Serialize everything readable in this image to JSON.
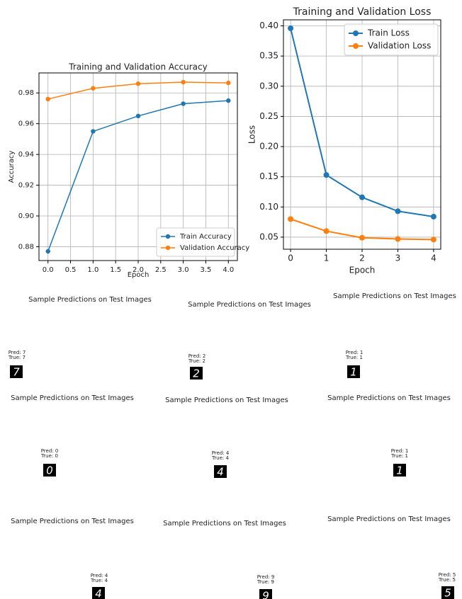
{
  "chart_data": [
    {
      "type": "line",
      "title": "Training and Validation Accuracy",
      "x_label": "Epoch",
      "y_label": "Accuracy",
      "x": [
        0,
        1,
        2,
        3,
        4
      ],
      "series": [
        {
          "name": "Train Accuracy",
          "color": "#1f77b4",
          "values": [
            0.877,
            0.955,
            0.965,
            0.973,
            0.975
          ]
        },
        {
          "name": "Validation Accuracy",
          "color": "#ff7f0e",
          "values": [
            0.976,
            0.983,
            0.986,
            0.987,
            0.9865
          ]
        }
      ],
      "xlim": [
        -0.2,
        4.2
      ],
      "xticks": [
        {
          "value": 0,
          "label": "0.0"
        },
        0.5,
        {
          "value": 1,
          "label": "1.0"
        },
        1.5,
        {
          "value": 2,
          "label": "2.0"
        },
        2.5,
        {
          "value": 3,
          "label": "3.0"
        },
        3.5,
        {
          "value": 4,
          "label": "4.0"
        }
      ],
      "ylim": [
        0.871,
        0.993
      ],
      "yticks": [
        0.88,
        {
          "value": 0.9,
          "label": "0.90"
        },
        0.92,
        0.94,
        0.96,
        0.98
      ],
      "grid": true,
      "legend": "lower right"
    },
    {
      "type": "line",
      "title": "Training and Validation Loss",
      "x_label": "Epoch",
      "y_label": "Loss",
      "x": [
        0,
        1,
        2,
        3,
        4
      ],
      "series": [
        {
          "name": "Train Loss",
          "color": "#1f77b4",
          "values": [
            0.396,
            0.153,
            0.116,
            0.093,
            0.084
          ]
        },
        {
          "name": "Validation Loss",
          "color": "#ff7f0e",
          "values": [
            0.08,
            0.06,
            0.049,
            0.047,
            0.046
          ]
        }
      ],
      "xlim": [
        -0.2,
        4.2
      ],
      "xticks": [
        0,
        1,
        2,
        3,
        4
      ],
      "ylim": [
        0.03,
        0.41
      ],
      "yticks": [
        0.05,
        {
          "value": 0.1,
          "label": "0.10"
        },
        0.15,
        {
          "value": 0.2,
          "label": "0.20"
        },
        0.25,
        {
          "value": 0.3,
          "label": "0.30"
        },
        0.35,
        {
          "value": 0.4,
          "label": "0.40"
        }
      ],
      "grid": true,
      "legend": "upper right"
    }
  ],
  "samples": [
    {
      "title": "Sample Predictions on Test Images",
      "pred": "Pred: 7",
      "true": "True: 7",
      "digit": "7"
    },
    {
      "title": "Sample Predictions on Test Images",
      "pred": "Pred: 2",
      "true": "True: 2",
      "digit": "2"
    },
    {
      "title": "Sample Predictions on Test Images",
      "pred": "Pred: 1",
      "true": "True: 1",
      "digit": "1"
    },
    {
      "title": "Sample Predictions on Test Images",
      "pred": "Pred: 0",
      "true": "True: 0",
      "digit": "0"
    },
    {
      "title": "Sample Predictions on Test Images",
      "pred": "Pred: 4",
      "true": "True: 4",
      "digit": "4"
    },
    {
      "title": "Sample Predictions on Test Images",
      "pred": "Pred: 1",
      "true": "True: 1",
      "digit": "1"
    },
    {
      "title": "Sample Predictions on Test Images",
      "pred": "Pred: 4",
      "true": "True: 4",
      "digit": "4"
    },
    {
      "title": "Sample Predictions on Test Images",
      "pred": "Pred: 9",
      "true": "True: 9",
      "digit": "9"
    },
    {
      "title": "Sample Predictions on Test Images",
      "pred": "Pred: 5",
      "true": "True: 5",
      "digit": "5"
    }
  ]
}
